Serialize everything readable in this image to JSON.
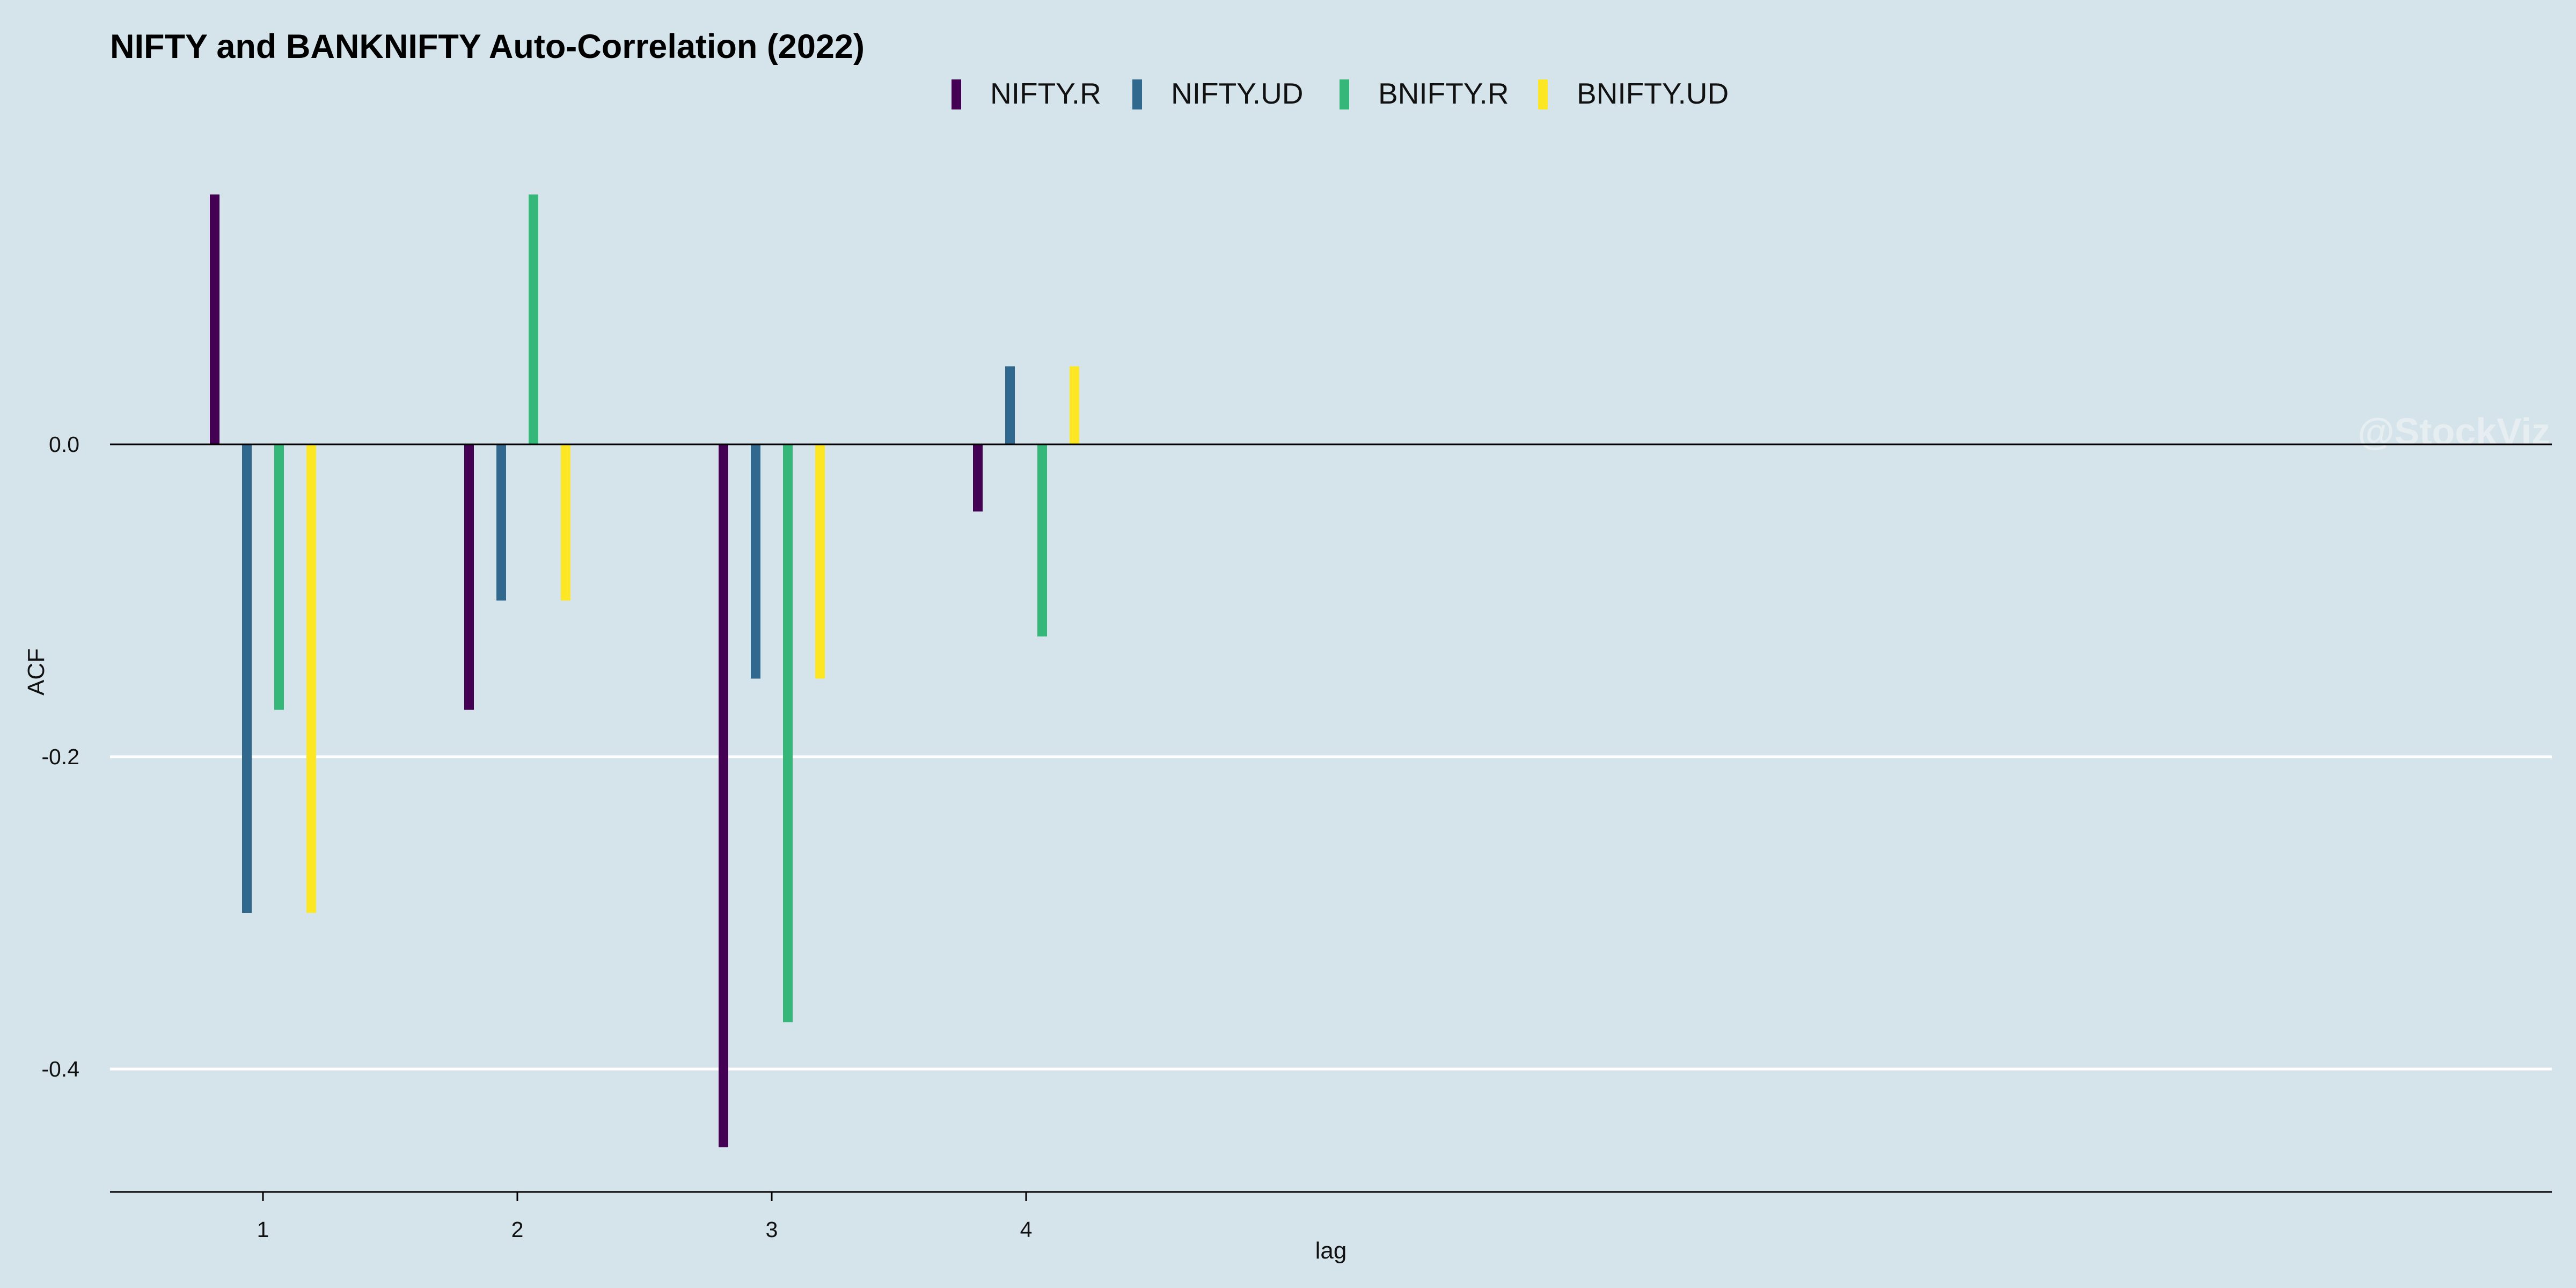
{
  "chart_data": {
    "type": "bar",
    "title": "NIFTY and BANKNIFTY Auto-Correlation (2022)",
    "xlabel": "lag",
    "ylabel": "ACF",
    "categories": [
      "1",
      "2",
      "3",
      "4"
    ],
    "series": [
      {
        "name": "NIFTY.R",
        "color": "#440154",
        "values": [
          0.16,
          -0.17,
          -0.45,
          -0.043
        ]
      },
      {
        "name": "NIFTY.UD",
        "color": "#31688e",
        "values": [
          -0.3,
          -0.1,
          -0.15,
          0.05
        ]
      },
      {
        "name": "BNIFTY.R",
        "color": "#35b779",
        "values": [
          -0.17,
          0.16,
          -0.37,
          -0.123
        ]
      },
      {
        "name": "BNIFTY.UD",
        "color": "#fde725",
        "values": [
          -0.3,
          -0.1,
          -0.15,
          0.05
        ]
      }
    ],
    "yticks": [
      0.0,
      -0.2,
      -0.4
    ],
    "ytick_labels": [
      "0.0",
      "-0.2",
      "-0.4"
    ],
    "ylim": [
      -0.48,
      0.2
    ],
    "grid": true,
    "legend_position": "top"
  },
  "watermark": "@StockViz"
}
